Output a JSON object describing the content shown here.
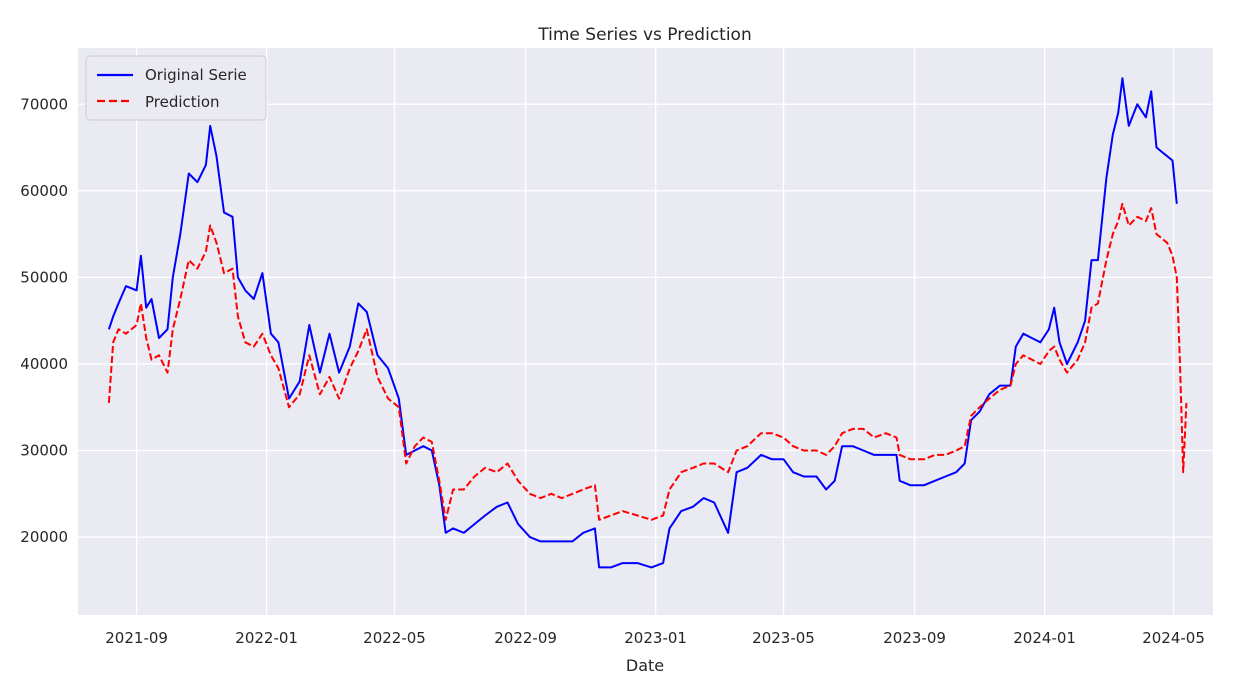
{
  "chart_data": {
    "type": "line",
    "title": "Time Series vs Prediction",
    "xlabel": "Date",
    "ylabel": "",
    "x_range": [
      "2021-07-08",
      "2024-06-07"
    ],
    "ylim": [
      11000,
      76500
    ],
    "x_ticks": [
      {
        "date": "2021-09-01",
        "label": "2021-09"
      },
      {
        "date": "2022-01-01",
        "label": "2022-01"
      },
      {
        "date": "2022-05-01",
        "label": "2022-05"
      },
      {
        "date": "2022-09-01",
        "label": "2022-09"
      },
      {
        "date": "2023-01-01",
        "label": "2023-01"
      },
      {
        "date": "2023-05-01",
        "label": "2023-05"
      },
      {
        "date": "2023-09-01",
        "label": "2023-09"
      },
      {
        "date": "2024-01-01",
        "label": "2024-01"
      },
      {
        "date": "2024-05-01",
        "label": "2024-05"
      }
    ],
    "y_ticks": [
      20000,
      30000,
      40000,
      50000,
      60000,
      70000
    ],
    "grid": true,
    "legend": "top-left",
    "series": [
      {
        "name": "Original Serie",
        "color": "#0000ff",
        "style": "solid",
        "points": [
          [
            "2021-08-06",
            44000
          ],
          [
            "2021-08-10",
            45500
          ],
          [
            "2021-08-15",
            47000
          ],
          [
            "2021-08-22",
            49000
          ],
          [
            "2021-09-01",
            48500
          ],
          [
            "2021-09-05",
            52500
          ],
          [
            "2021-09-10",
            46500
          ],
          [
            "2021-09-15",
            47500
          ],
          [
            "2021-09-22",
            43000
          ],
          [
            "2021-09-30",
            44000
          ],
          [
            "2021-10-05",
            50000
          ],
          [
            "2021-10-12",
            55000
          ],
          [
            "2021-10-20",
            62000
          ],
          [
            "2021-10-28",
            61000
          ],
          [
            "2021-11-05",
            63000
          ],
          [
            "2021-11-09",
            67500
          ],
          [
            "2021-11-15",
            64000
          ],
          [
            "2021-11-22",
            57500
          ],
          [
            "2021-11-30",
            57000
          ],
          [
            "2021-12-05",
            50000
          ],
          [
            "2021-12-12",
            48500
          ],
          [
            "2021-12-20",
            47500
          ],
          [
            "2021-12-28",
            50500
          ],
          [
            "2022-01-05",
            43500
          ],
          [
            "2022-01-12",
            42500
          ],
          [
            "2022-01-22",
            36000
          ],
          [
            "2022-02-01",
            38000
          ],
          [
            "2022-02-10",
            44500
          ],
          [
            "2022-02-20",
            39000
          ],
          [
            "2022-03-01",
            43500
          ],
          [
            "2022-03-10",
            39000
          ],
          [
            "2022-03-20",
            42000
          ],
          [
            "2022-03-28",
            47000
          ],
          [
            "2022-04-05",
            46000
          ],
          [
            "2022-04-15",
            41000
          ],
          [
            "2022-04-25",
            39500
          ],
          [
            "2022-05-05",
            36000
          ],
          [
            "2022-05-12",
            29500
          ],
          [
            "2022-05-20",
            30000
          ],
          [
            "2022-05-28",
            30500
          ],
          [
            "2022-06-05",
            30000
          ],
          [
            "2022-06-12",
            26000
          ],
          [
            "2022-06-18",
            20500
          ],
          [
            "2022-06-25",
            21000
          ],
          [
            "2022-07-05",
            20500
          ],
          [
            "2022-07-15",
            21500
          ],
          [
            "2022-07-25",
            22500
          ],
          [
            "2022-08-05",
            23500
          ],
          [
            "2022-08-15",
            24000
          ],
          [
            "2022-08-25",
            21500
          ],
          [
            "2022-09-05",
            20000
          ],
          [
            "2022-09-15",
            19500
          ],
          [
            "2022-09-25",
            19500
          ],
          [
            "2022-10-05",
            19500
          ],
          [
            "2022-10-15",
            19500
          ],
          [
            "2022-10-25",
            20500
          ],
          [
            "2022-11-05",
            21000
          ],
          [
            "2022-11-09",
            16500
          ],
          [
            "2022-11-20",
            16500
          ],
          [
            "2022-12-01",
            17000
          ],
          [
            "2022-12-15",
            17000
          ],
          [
            "2022-12-28",
            16500
          ],
          [
            "2023-01-08",
            17000
          ],
          [
            "2023-01-14",
            21000
          ],
          [
            "2023-01-25",
            23000
          ],
          [
            "2023-02-05",
            23500
          ],
          [
            "2023-02-15",
            24500
          ],
          [
            "2023-02-25",
            24000
          ],
          [
            "2023-03-10",
            20500
          ],
          [
            "2023-03-18",
            27500
          ],
          [
            "2023-03-28",
            28000
          ],
          [
            "2023-04-10",
            29500
          ],
          [
            "2023-04-20",
            29000
          ],
          [
            "2023-05-01",
            29000
          ],
          [
            "2023-05-10",
            27500
          ],
          [
            "2023-05-20",
            27000
          ],
          [
            "2023-06-01",
            27000
          ],
          [
            "2023-06-10",
            25500
          ],
          [
            "2023-06-18",
            26500
          ],
          [
            "2023-06-25",
            30500
          ],
          [
            "2023-07-05",
            30500
          ],
          [
            "2023-07-15",
            30000
          ],
          [
            "2023-07-25",
            29500
          ],
          [
            "2023-08-05",
            29500
          ],
          [
            "2023-08-15",
            29500
          ],
          [
            "2023-08-18",
            26500
          ],
          [
            "2023-08-28",
            26000
          ],
          [
            "2023-09-10",
            26000
          ],
          [
            "2023-09-20",
            26500
          ],
          [
            "2023-09-30",
            27000
          ],
          [
            "2023-10-10",
            27500
          ],
          [
            "2023-10-18",
            28500
          ],
          [
            "2023-10-24",
            33500
          ],
          [
            "2023-11-01",
            34500
          ],
          [
            "2023-11-10",
            36500
          ],
          [
            "2023-11-20",
            37500
          ],
          [
            "2023-11-30",
            37500
          ],
          [
            "2023-12-05",
            42000
          ],
          [
            "2023-12-12",
            43500
          ],
          [
            "2023-12-20",
            43000
          ],
          [
            "2023-12-28",
            42500
          ],
          [
            "2024-01-05",
            44000
          ],
          [
            "2024-01-10",
            46500
          ],
          [
            "2024-01-15",
            42500
          ],
          [
            "2024-01-22",
            40000
          ],
          [
            "2024-02-01",
            42500
          ],
          [
            "2024-02-08",
            45000
          ],
          [
            "2024-02-14",
            52000
          ],
          [
            "2024-02-20",
            52000
          ],
          [
            "2024-02-28",
            61500
          ],
          [
            "2024-03-05",
            66500
          ],
          [
            "2024-03-10",
            69000
          ],
          [
            "2024-03-14",
            73000
          ],
          [
            "2024-03-20",
            67500
          ],
          [
            "2024-03-28",
            70000
          ],
          [
            "2024-04-05",
            68500
          ],
          [
            "2024-04-10",
            71500
          ],
          [
            "2024-04-15",
            65000
          ],
          [
            "2024-04-20",
            64500
          ],
          [
            "2024-04-25",
            64000
          ],
          [
            "2024-04-30",
            63500
          ],
          [
            "2024-05-04",
            58500
          ]
        ]
      },
      {
        "name": "Prediction",
        "color": "#ff0000",
        "style": "dashed",
        "points": [
          [
            "2021-08-06",
            35500
          ],
          [
            "2021-08-10",
            42500
          ],
          [
            "2021-08-15",
            44000
          ],
          [
            "2021-08-22",
            43500
          ],
          [
            "2021-09-01",
            44500
          ],
          [
            "2021-09-05",
            47000
          ],
          [
            "2021-09-10",
            43000
          ],
          [
            "2021-09-15",
            40500
          ],
          [
            "2021-09-22",
            41000
          ],
          [
            "2021-09-30",
            39000
          ],
          [
            "2021-10-05",
            44000
          ],
          [
            "2021-10-12",
            47500
          ],
          [
            "2021-10-20",
            52000
          ],
          [
            "2021-10-28",
            51000
          ],
          [
            "2021-11-05",
            53000
          ],
          [
            "2021-11-09",
            56000
          ],
          [
            "2021-11-15",
            54000
          ],
          [
            "2021-11-22",
            50500
          ],
          [
            "2021-11-30",
            51000
          ],
          [
            "2021-12-05",
            45500
          ],
          [
            "2021-12-12",
            42500
          ],
          [
            "2021-12-20",
            42000
          ],
          [
            "2021-12-28",
            43500
          ],
          [
            "2022-01-05",
            41000
          ],
          [
            "2022-01-12",
            39500
          ],
          [
            "2022-01-22",
            35000
          ],
          [
            "2022-02-01",
            36500
          ],
          [
            "2022-02-10",
            41000
          ],
          [
            "2022-02-20",
            36500
          ],
          [
            "2022-03-01",
            38500
          ],
          [
            "2022-03-10",
            36000
          ],
          [
            "2022-03-20",
            39500
          ],
          [
            "2022-03-28",
            41500
          ],
          [
            "2022-04-05",
            44000
          ],
          [
            "2022-04-15",
            38500
          ],
          [
            "2022-04-25",
            36000
          ],
          [
            "2022-05-05",
            35000
          ],
          [
            "2022-05-12",
            28500
          ],
          [
            "2022-05-20",
            30500
          ],
          [
            "2022-05-28",
            31500
          ],
          [
            "2022-06-05",
            31000
          ],
          [
            "2022-06-12",
            26500
          ],
          [
            "2022-06-18",
            22000
          ],
          [
            "2022-06-25",
            25500
          ],
          [
            "2022-07-05",
            25500
          ],
          [
            "2022-07-15",
            27000
          ],
          [
            "2022-07-25",
            28000
          ],
          [
            "2022-08-05",
            27500
          ],
          [
            "2022-08-15",
            28500
          ],
          [
            "2022-08-25",
            26500
          ],
          [
            "2022-09-05",
            25000
          ],
          [
            "2022-09-15",
            24500
          ],
          [
            "2022-09-25",
            25000
          ],
          [
            "2022-10-05",
            24500
          ],
          [
            "2022-10-15",
            25000
          ],
          [
            "2022-10-25",
            25500
          ],
          [
            "2022-11-05",
            26000
          ],
          [
            "2022-11-09",
            22000
          ],
          [
            "2022-11-20",
            22500
          ],
          [
            "2022-12-01",
            23000
          ],
          [
            "2022-12-15",
            22500
          ],
          [
            "2022-12-28",
            22000
          ],
          [
            "2023-01-08",
            22500
          ],
          [
            "2023-01-14",
            25500
          ],
          [
            "2023-01-25",
            27500
          ],
          [
            "2023-02-05",
            28000
          ],
          [
            "2023-02-15",
            28500
          ],
          [
            "2023-02-25",
            28500
          ],
          [
            "2023-03-10",
            27500
          ],
          [
            "2023-03-18",
            30000
          ],
          [
            "2023-03-28",
            30500
          ],
          [
            "2023-04-10",
            32000
          ],
          [
            "2023-04-20",
            32000
          ],
          [
            "2023-05-01",
            31500
          ],
          [
            "2023-05-10",
            30500
          ],
          [
            "2023-05-20",
            30000
          ],
          [
            "2023-06-01",
            30000
          ],
          [
            "2023-06-10",
            29500
          ],
          [
            "2023-06-18",
            30500
          ],
          [
            "2023-06-25",
            32000
          ],
          [
            "2023-07-05",
            32500
          ],
          [
            "2023-07-15",
            32500
          ],
          [
            "2023-07-25",
            31500
          ],
          [
            "2023-08-05",
            32000
          ],
          [
            "2023-08-15",
            31500
          ],
          [
            "2023-08-18",
            29500
          ],
          [
            "2023-08-28",
            29000
          ],
          [
            "2023-09-10",
            29000
          ],
          [
            "2023-09-20",
            29500
          ],
          [
            "2023-09-30",
            29500
          ],
          [
            "2023-10-10",
            30000
          ],
          [
            "2023-10-18",
            30500
          ],
          [
            "2023-10-24",
            34000
          ],
          [
            "2023-11-01",
            35000
          ],
          [
            "2023-11-10",
            36000
          ],
          [
            "2023-11-20",
            37000
          ],
          [
            "2023-11-30",
            37500
          ],
          [
            "2023-12-05",
            40000
          ],
          [
            "2023-12-12",
            41000
          ],
          [
            "2023-12-20",
            40500
          ],
          [
            "2023-12-28",
            40000
          ],
          [
            "2024-01-05",
            41500
          ],
          [
            "2024-01-10",
            42000
          ],
          [
            "2024-01-15",
            40500
          ],
          [
            "2024-01-22",
            39000
          ],
          [
            "2024-02-01",
            40500
          ],
          [
            "2024-02-08",
            42500
          ],
          [
            "2024-02-14",
            46500
          ],
          [
            "2024-02-20",
            47000
          ],
          [
            "2024-02-28",
            52000
          ],
          [
            "2024-03-05",
            55000
          ],
          [
            "2024-03-10",
            56500
          ],
          [
            "2024-03-14",
            58500
          ],
          [
            "2024-03-20",
            56000
          ],
          [
            "2024-03-28",
            57000
          ],
          [
            "2024-04-05",
            56500
          ],
          [
            "2024-04-10",
            58000
          ],
          [
            "2024-04-15",
            55000
          ],
          [
            "2024-04-20",
            54500
          ],
          [
            "2024-04-25",
            54000
          ],
          [
            "2024-04-30",
            52500
          ],
          [
            "2024-05-04",
            50000
          ],
          [
            "2024-05-07",
            40000
          ],
          [
            "2024-05-10",
            27500
          ],
          [
            "2024-05-13",
            35500
          ]
        ]
      }
    ]
  }
}
